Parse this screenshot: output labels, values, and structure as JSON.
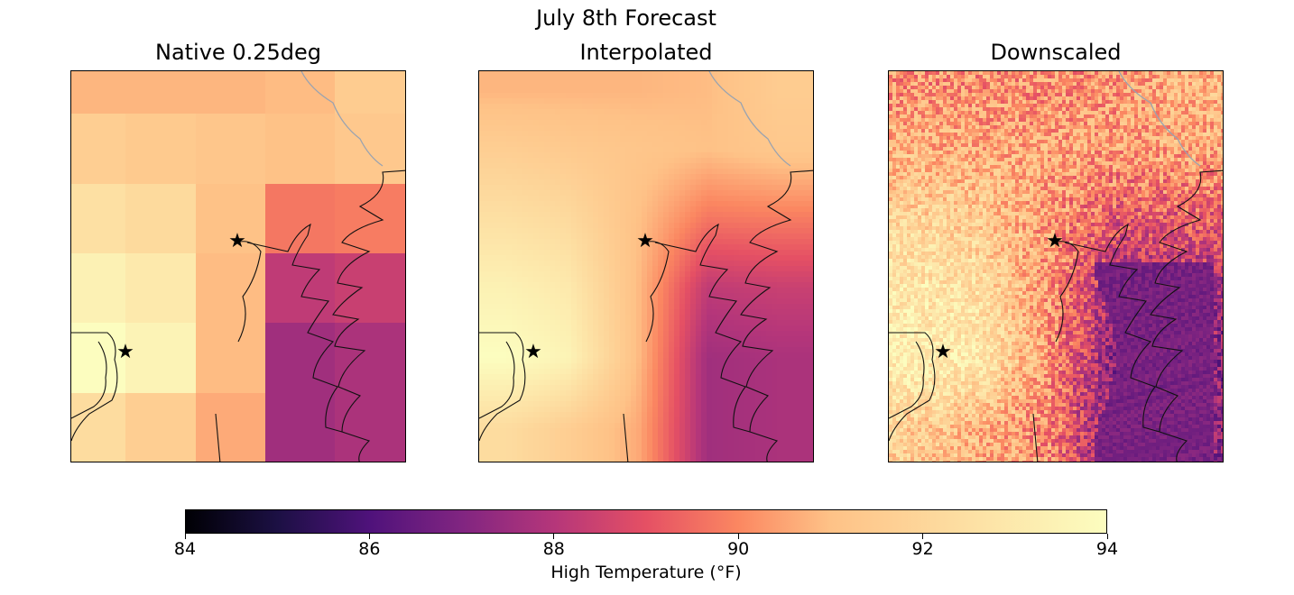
{
  "chart_data": {
    "type": "heatmap",
    "title": "July 8th Forecast",
    "panels": [
      {
        "title": "Native 0.25deg",
        "style": "grid"
      },
      {
        "title": "Interpolated",
        "style": "smooth"
      },
      {
        "title": "Downscaled",
        "style": "fine"
      }
    ],
    "grid_values": [
      [
        90.8,
        90.8,
        90.8,
        90.9,
        91.5
      ],
      [
        91.6,
        91.4,
        91.2,
        91.0,
        91.3
      ],
      [
        92.5,
        92.2,
        91.0,
        89.7,
        89.8
      ],
      [
        93.4,
        93.0,
        90.9,
        88.2,
        88.4
      ],
      [
        94.0,
        93.5,
        90.9,
        87.6,
        87.8
      ],
      [
        92.3,
        91.6,
        90.6,
        87.6,
        87.8
      ]
    ],
    "colorbar": {
      "label": "High Temperature (°F)",
      "range": [
        84,
        94
      ],
      "ticks": [
        "84",
        "86",
        "88",
        "90",
        "92",
        "94"
      ],
      "colormap": "magma"
    },
    "markers": [
      {
        "name": "star-marker-1",
        "symbol": "★"
      },
      {
        "name": "star-marker-2",
        "symbol": "★"
      }
    ]
  }
}
